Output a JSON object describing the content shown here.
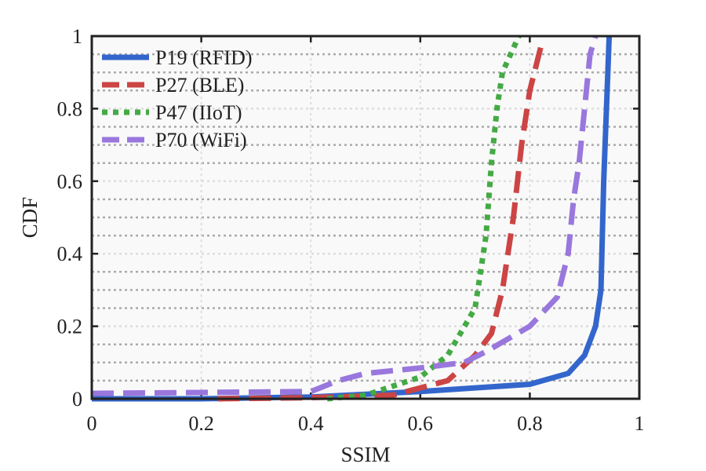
{
  "chart_data": {
    "type": "line",
    "xlabel": "SSIM",
    "ylabel": "CDF",
    "xlim": [
      0,
      1
    ],
    "ylim": [
      0,
      1
    ],
    "xticks": [
      "0",
      "0.2",
      "0.4",
      "0.6",
      "0.8",
      "1"
    ],
    "yticks": [
      "0",
      "0.2",
      "0.4",
      "0.6",
      "0.8",
      "1"
    ],
    "grid": true,
    "legend_position": "top-left",
    "series": [
      {
        "name": "P19 (RFID)",
        "color": "#3366cc",
        "style": "solid",
        "points": [
          [
            0,
            0
          ],
          [
            0.2,
            0
          ],
          [
            0.4,
            0.005
          ],
          [
            0.6,
            0.02
          ],
          [
            0.8,
            0.04
          ],
          [
            0.87,
            0.07
          ],
          [
            0.9,
            0.12
          ],
          [
            0.92,
            0.2
          ],
          [
            0.93,
            0.3
          ],
          [
            0.935,
            0.6
          ],
          [
            0.94,
            0.8
          ],
          [
            0.945,
            1.0
          ]
        ]
      },
      {
        "name": "P27 (BLE)",
        "color": "#cc4444",
        "style": "dashed",
        "points": [
          [
            0.23,
            0
          ],
          [
            0.4,
            0.003
          ],
          [
            0.55,
            0.01
          ],
          [
            0.65,
            0.05
          ],
          [
            0.7,
            0.12
          ],
          [
            0.73,
            0.18
          ],
          [
            0.75,
            0.3
          ],
          [
            0.77,
            0.5
          ],
          [
            0.785,
            0.7
          ],
          [
            0.8,
            0.85
          ],
          [
            0.82,
            0.97
          ]
        ]
      },
      {
        "name": "P47 (IIoT)",
        "color": "#44aa44",
        "style": "dotted",
        "points": [
          [
            0.43,
            0
          ],
          [
            0.5,
            0.01
          ],
          [
            0.6,
            0.06
          ],
          [
            0.65,
            0.12
          ],
          [
            0.7,
            0.25
          ],
          [
            0.72,
            0.45
          ],
          [
            0.73,
            0.65
          ],
          [
            0.74,
            0.8
          ],
          [
            0.75,
            0.9
          ],
          [
            0.78,
            1.0
          ]
        ]
      },
      {
        "name": "P70 (WiFi)",
        "color": "#9977dd",
        "style": "dashed",
        "points": [
          [
            0,
            0.015
          ],
          [
            0.4,
            0.02
          ],
          [
            0.45,
            0.05
          ],
          [
            0.5,
            0.07
          ],
          [
            0.6,
            0.085
          ],
          [
            0.68,
            0.1
          ],
          [
            0.72,
            0.13
          ],
          [
            0.8,
            0.2
          ],
          [
            0.85,
            0.28
          ],
          [
            0.87,
            0.4
          ],
          [
            0.88,
            0.55
          ],
          [
            0.89,
            0.65
          ],
          [
            0.9,
            0.8
          ],
          [
            0.91,
            0.95
          ],
          [
            0.92,
            1.0
          ]
        ]
      }
    ]
  }
}
